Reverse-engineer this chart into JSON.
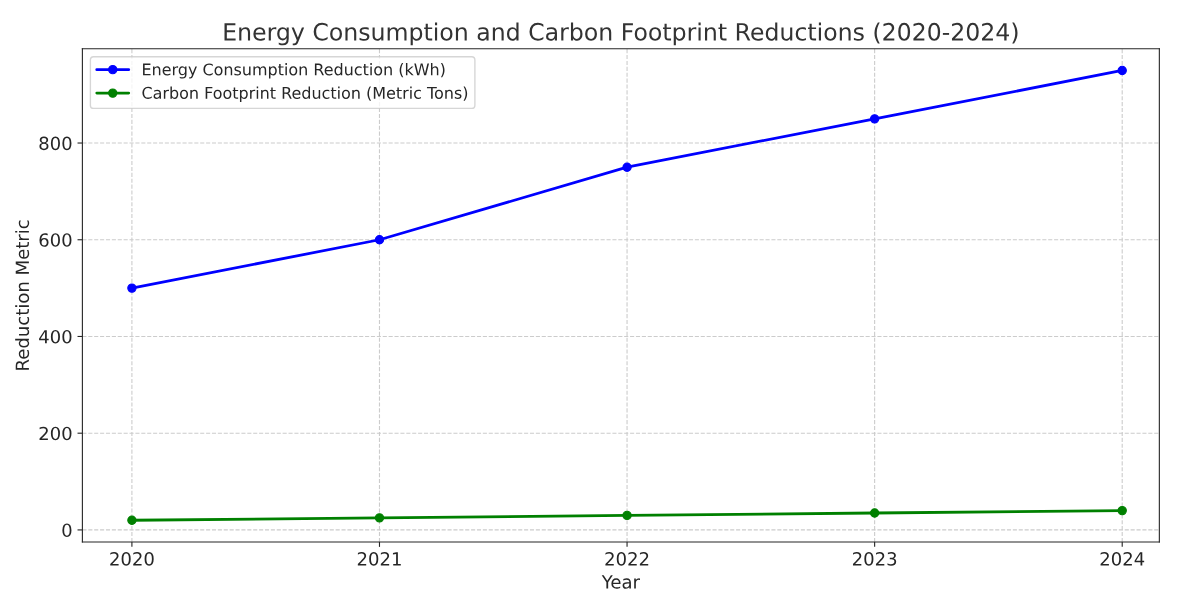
{
  "chart_data": {
    "type": "line",
    "title": "Energy Consumption and Carbon Footprint Reductions (2020-2024)",
    "xlabel": "Year",
    "ylabel": "Reduction Metric",
    "x": [
      2020,
      2021,
      2022,
      2023,
      2024
    ],
    "series": [
      {
        "name": "Energy Consumption Reduction (kWh)",
        "color": "#0000ff",
        "values": [
          500,
          600,
          750,
          850,
          950
        ]
      },
      {
        "name": "Carbon Footprint Reduction (Metric Tons)",
        "color": "#008000",
        "values": [
          20,
          25,
          30,
          35,
          40
        ]
      }
    ],
    "xlim": [
      2019.8,
      2024.15
    ],
    "xticks": [
      2020,
      2021,
      2022,
      2023,
      2024
    ],
    "ylim": [
      -25,
      995
    ],
    "yticks": [
      0,
      200,
      400,
      600,
      800
    ],
    "grid": true,
    "legend": "top left",
    "marker": "circle",
    "line_style": "solid"
  }
}
